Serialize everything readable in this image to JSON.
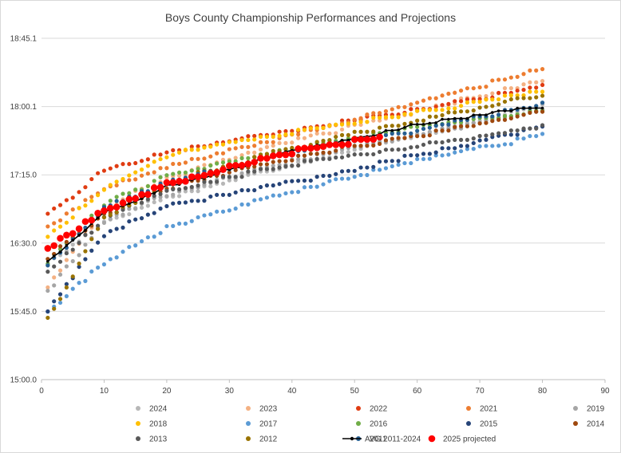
{
  "chart_data": {
    "type": "scatter",
    "title": "Boys County Championship Performances and Projections",
    "xlabel": "",
    "ylabel": "",
    "x_range": [
      0,
      90
    ],
    "x_ticks": [
      0,
      10,
      20,
      30,
      40,
      50,
      60,
      70,
      80,
      90
    ],
    "y_range_seconds": [
      900,
      1125.1
    ],
    "y_tick_labels": [
      "15:00.0",
      "15:45.0",
      "16:30.0",
      "17:15.0",
      "18:00.1",
      "18:45.1"
    ],
    "grid": "horizontal",
    "legend_position": "bottom",
    "series": [
      {
        "name": "2024",
        "color": "#b7b7b7",
        "marker": "dot",
        "n": 80,
        "anchors": [
          [
            1,
            976
          ],
          [
            10,
            1004
          ],
          [
            20,
            1020
          ],
          [
            40,
            1042
          ],
          [
            60,
            1061
          ],
          [
            80,
            1080
          ]
        ]
      },
      {
        "name": "2023",
        "color": "#f4b183",
        "marker": "dot",
        "n": 80,
        "anchors": [
          [
            1,
            962
          ],
          [
            10,
            1013
          ],
          [
            20,
            1033
          ],
          [
            40,
            1057
          ],
          [
            60,
            1077
          ],
          [
            80,
            1097
          ]
        ]
      },
      {
        "name": "2022",
        "color": "#e03c12",
        "marker": "dot",
        "n": 80,
        "anchors": [
          [
            1,
            1008
          ],
          [
            10,
            1038
          ],
          [
            20,
            1050
          ],
          [
            40,
            1064
          ],
          [
            60,
            1078
          ],
          [
            80,
            1093
          ]
        ]
      },
      {
        "name": "2021",
        "color": "#ed7d31",
        "marker": "dot",
        "n": 80,
        "anchors": [
          [
            1,
            1000
          ],
          [
            10,
            1026
          ],
          [
            20,
            1040
          ],
          [
            40,
            1061
          ],
          [
            60,
            1082
          ],
          [
            80,
            1105
          ]
        ]
      },
      {
        "name": "2019",
        "color": "#a5a5a5",
        "marker": "dot",
        "n": 80,
        "anchors": [
          [
            1,
            958
          ],
          [
            10,
            1004
          ],
          [
            20,
            1022
          ],
          [
            40,
            1044
          ],
          [
            60,
            1061
          ],
          [
            80,
            1077
          ]
        ]
      },
      {
        "name": "2018",
        "color": "#ffc000",
        "marker": "dot",
        "n": 80,
        "anchors": [
          [
            1,
            994
          ],
          [
            10,
            1026
          ],
          [
            20,
            1048
          ],
          [
            40,
            1063
          ],
          [
            60,
            1076
          ],
          [
            80,
            1090
          ]
        ]
      },
      {
        "name": "2017",
        "color": "#5b9bd5",
        "marker": "dot",
        "n": 80,
        "anchors": [
          [
            1,
            945
          ],
          [
            10,
            977
          ],
          [
            20,
            1000
          ],
          [
            40,
            1024
          ],
          [
            60,
            1044
          ],
          [
            80,
            1061
          ]
        ]
      },
      {
        "name": "2016",
        "color": "#70ad47",
        "marker": "dot",
        "n": 80,
        "anchors": [
          [
            1,
            977
          ],
          [
            10,
            1016
          ],
          [
            20,
            1034
          ],
          [
            40,
            1052
          ],
          [
            60,
            1066
          ],
          [
            80,
            1077
          ]
        ]
      },
      {
        "name": "2015",
        "color": "#264478",
        "marker": "dot",
        "n": 80,
        "anchors": [
          [
            1,
            946
          ],
          [
            10,
            996
          ],
          [
            20,
            1014
          ],
          [
            40,
            1030
          ],
          [
            60,
            1048
          ],
          [
            80,
            1066
          ]
        ]
      },
      {
        "name": "2014",
        "color": "#9e480e",
        "marker": "dot",
        "n": 80,
        "anchors": [
          [
            1,
            981
          ],
          [
            10,
            1008
          ],
          [
            20,
            1026
          ],
          [
            40,
            1046
          ],
          [
            60,
            1061
          ],
          [
            80,
            1076
          ]
        ]
      },
      {
        "name": "2013",
        "color": "#595959",
        "marker": "dot",
        "n": 80,
        "anchors": [
          [
            1,
            970
          ],
          [
            10,
            1006
          ],
          [
            20,
            1025
          ],
          [
            40,
            1042
          ],
          [
            60,
            1054
          ],
          [
            80,
            1067
          ]
        ]
      },
      {
        "name": "2012",
        "color": "#997300",
        "marker": "dot",
        "n": 80,
        "anchors": [
          [
            1,
            940
          ],
          [
            10,
            1006
          ],
          [
            20,
            1030
          ],
          [
            40,
            1053
          ],
          [
            60,
            1071
          ],
          [
            80,
            1088
          ]
        ]
      },
      {
        "name": "2011",
        "color": "#255e91",
        "marker": "dot",
        "n": 80,
        "anchors": [
          [
            1,
            975
          ],
          [
            10,
            1013
          ],
          [
            20,
            1030
          ],
          [
            40,
            1050
          ],
          [
            60,
            1064
          ],
          [
            80,
            1082
          ]
        ]
      },
      {
        "name": "AVG 2011-2024",
        "color": "#000000",
        "marker": "line-dot",
        "n": 80,
        "anchors": [
          [
            1,
            978
          ],
          [
            10,
            1010
          ],
          [
            20,
            1027
          ],
          [
            40,
            1050
          ],
          [
            60,
            1068
          ],
          [
            80,
            1080
          ]
        ]
      },
      {
        "name": "2025 projected",
        "color": "#ff0000",
        "marker": "big-dot",
        "n": 54,
        "anchors": [
          [
            1,
            987
          ],
          [
            10,
            1011
          ],
          [
            20,
            1029
          ],
          [
            40,
            1050
          ],
          [
            54,
            1060
          ]
        ]
      }
    ]
  }
}
